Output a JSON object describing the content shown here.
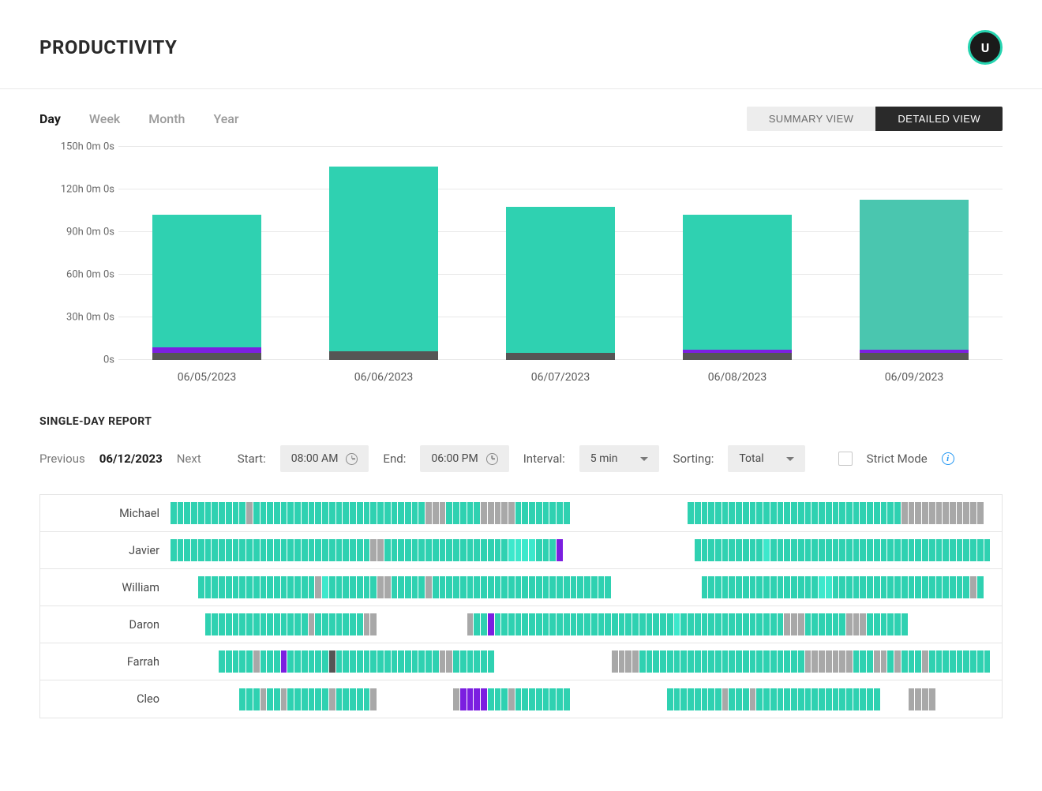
{
  "header": {
    "title": "PRODUCTIVITY",
    "avatar_letter": "U"
  },
  "colors": {
    "teal": "#2fd1b1",
    "teal_bright": "#3de8cc",
    "teal_muted": "#4ac6af",
    "purple": "#7b1fe0",
    "dark": "#555555",
    "gray": "#a8a8a8",
    "empty": "transparent",
    "grid": "#e8e8e8",
    "bg": "#ffffff"
  },
  "time_tabs": {
    "items": [
      "Day",
      "Week",
      "Month",
      "Year"
    ],
    "active_index": 0
  },
  "view_toggle": {
    "summary": "SUMMARY VIEW",
    "detailed": "DETAILED VIEW",
    "active": "detailed"
  },
  "chart": {
    "type": "stacked-bar",
    "ymax": 150,
    "ytick_step": 30,
    "ylabels": [
      "0s",
      "30h 0m 0s",
      "60h 0m 0s",
      "90h 0m 0s",
      "120h 0m 0s",
      "150h 0m 0s"
    ],
    "categories": [
      "06/05/2023",
      "06/06/2023",
      "06/07/2023",
      "06/08/2023",
      "06/09/2023"
    ],
    "series": [
      {
        "name": "dark",
        "color_key": "dark",
        "values": [
          5,
          6,
          5,
          5,
          5
        ]
      },
      {
        "name": "purple",
        "color_key": "purple",
        "values": [
          4,
          0,
          0,
          2,
          2
        ]
      },
      {
        "name": "teal",
        "color_key": "teal",
        "values": [
          93,
          130,
          103,
          95,
          0
        ]
      },
      {
        "name": "teal_muted",
        "color_key": "teal_muted",
        "values": [
          0,
          0,
          0,
          0,
          106
        ]
      }
    ]
  },
  "single_day": {
    "title": "SINGLE-DAY REPORT",
    "nav": {
      "previous": "Previous",
      "date": "06/12/2023",
      "next": "Next"
    },
    "controls": {
      "start_label": "Start:",
      "start_value": "08:00 AM",
      "end_label": "End:",
      "end_value": "06:00 PM",
      "interval_label": "Interval:",
      "interval_value": "5 min",
      "sorting_label": "Sorting:",
      "sorting_value": "Total",
      "strict_label": "Strict Mode"
    },
    "slot_count": 120,
    "people": [
      {
        "name": "Michael",
        "cells": "tttttttttttgtttttttttttttttttttttttttgggtttttgggggtttttttt_________________tttttttttttttttttttttttttttttttgggggggggggg"
      },
      {
        "name": "Javier",
        "cells": "tttttttttttttttttttttttttttttggttttttttttttttttttbbbbtttp___________________ttttttttttbtttttttttttttttttttttttttttttttt"
      },
      {
        "name": "William",
        "cells": "____tttttttttttttttttgbtttttttggtttttgtttttttttttttttttttttttttt_____________tttttttttttttttttbbttttttttttttttttttttgt_"
      },
      {
        "name": "Daron",
        "cells": "_____tttttttttttttttgtttttttgg_____________gttpttttttttttttttttttttttttttbtttttttttttttttgggttttttgggtttttt____________"
      },
      {
        "name": "Farrah",
        "cells": "_______tttttgtttpttttttdtttttttttttttttggtttttt_________________ggggttttttttttttttttttttttttgggggggtttggtgtttgttttttttt"
      },
      {
        "name": "Cleo",
        "cells": "__________tttgttgttttttgtttttg___________gpppptttgtttttttt______________ttttttttgtttgtttttttttttttttttt____gggg________"
      }
    ],
    "legend_map": {
      "t": "teal",
      "b": "teal_bright",
      "g": "gray",
      "p": "purple",
      "d": "dark",
      "_": "empty"
    }
  }
}
